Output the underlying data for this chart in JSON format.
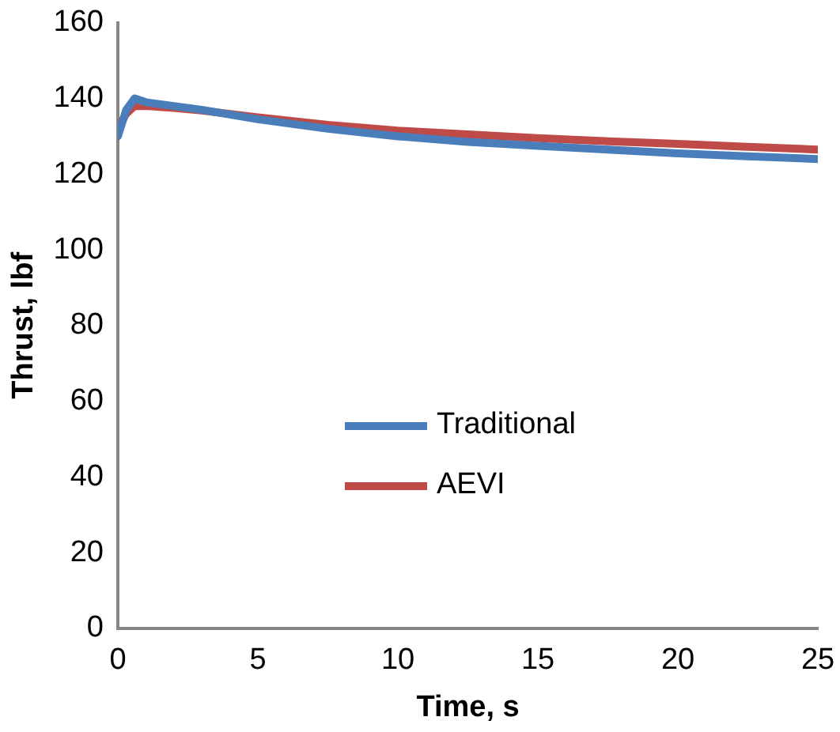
{
  "chart_data": {
    "type": "line",
    "xlabel": "Time, s",
    "ylabel": "Thrust, lbf",
    "xlim": [
      0,
      25
    ],
    "xticks": [
      0,
      5,
      10,
      15,
      20,
      25
    ],
    "ylim": [
      0,
      160
    ],
    "yticks": [
      0,
      20,
      40,
      60,
      80,
      100,
      120,
      140,
      160
    ],
    "grid": false,
    "legend": "center",
    "marker": "none",
    "line_style": "solid",
    "series": [
      {
        "name": "Traditional",
        "color": "#4a7ebb",
        "x": [
          0,
          0.3,
          0.6,
          1,
          2,
          3,
          5,
          7.5,
          10,
          12.5,
          15,
          17.5,
          20,
          22.5,
          25
        ],
        "values": [
          130,
          137,
          140,
          139,
          138,
          137,
          134.5,
          132,
          130,
          128.5,
          127.5,
          126.5,
          125.5,
          124.7,
          124
        ]
      },
      {
        "name": "AEVI",
        "color": "#be4b48",
        "x": [
          0,
          0.3,
          0.6,
          1,
          2,
          3,
          5,
          7.5,
          10,
          12.5,
          15,
          17.5,
          20,
          22.5,
          25
        ],
        "values": [
          132,
          136,
          138,
          138,
          137.5,
          136.8,
          135,
          133,
          131.5,
          130.5,
          129.5,
          128.7,
          128,
          127.2,
          126.5
        ]
      }
    ]
  }
}
